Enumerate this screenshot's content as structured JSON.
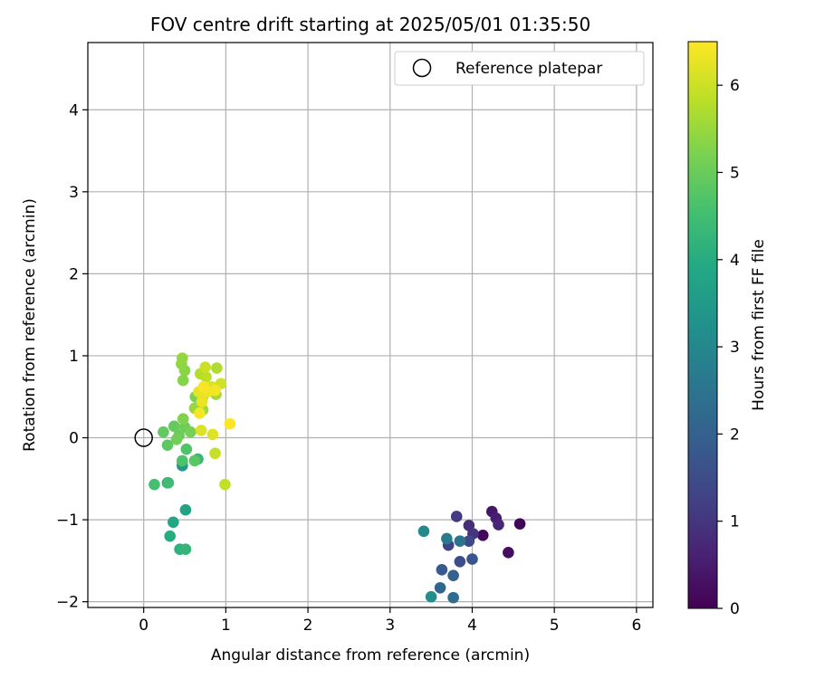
{
  "chart_data": {
    "type": "scatter",
    "title": "FOV centre drift starting at 2025/05/01 01:35:50",
    "xlabel": "Angular distance from reference (arcmin)",
    "ylabel": "Rotation from reference (arcmin)",
    "xlim": [
      -0.68,
      6.2
    ],
    "ylim": [
      -2.07,
      4.82
    ],
    "xticks": [
      0,
      1,
      2,
      3,
      4,
      5,
      6
    ],
    "yticks": [
      -2,
      -1,
      0,
      1,
      2,
      3,
      4
    ],
    "grid": true,
    "legend": {
      "position": "top-right",
      "entries": [
        "Reference platepar"
      ]
    },
    "colorbar": {
      "label": "Hours from first FF file",
      "min": 0,
      "max": 6.5,
      "ticks": [
        0,
        1,
        2,
        3,
        4,
        5,
        6
      ],
      "colormap": "viridis"
    },
    "reference": {
      "label": "Reference platepar",
      "x": 0,
      "y": 0
    },
    "points": [
      {
        "x": 4.58,
        "y": -1.05,
        "c": 0.05
      },
      {
        "x": 4.13,
        "y": -1.19,
        "c": 0.15
      },
      {
        "x": 4.44,
        "y": -1.4,
        "c": 0.25
      },
      {
        "x": 4.24,
        "y": -0.9,
        "c": 0.4
      },
      {
        "x": 4.29,
        "y": -0.98,
        "c": 0.55
      },
      {
        "x": 4.32,
        "y": -1.06,
        "c": 0.7
      },
      {
        "x": 3.96,
        "y": -1.07,
        "c": 0.85
      },
      {
        "x": 4.01,
        "y": -1.17,
        "c": 1.0
      },
      {
        "x": 3.81,
        "y": -0.96,
        "c": 1.1
      },
      {
        "x": 3.71,
        "y": -1.31,
        "c": 1.25
      },
      {
        "x": 3.96,
        "y": -1.26,
        "c": 1.4
      },
      {
        "x": 3.85,
        "y": -1.51,
        "c": 1.55
      },
      {
        "x": 4.0,
        "y": -1.48,
        "c": 1.7
      },
      {
        "x": 3.63,
        "y": -1.61,
        "c": 1.85
      },
      {
        "x": 3.77,
        "y": -1.68,
        "c": 2.0
      },
      {
        "x": 3.61,
        "y": -1.83,
        "c": 2.15
      },
      {
        "x": 3.77,
        "y": -1.95,
        "c": 2.3
      },
      {
        "x": 3.85,
        "y": -1.26,
        "c": 2.5
      },
      {
        "x": 3.69,
        "y": -1.23,
        "c": 2.7
      },
      {
        "x": 3.41,
        "y": -1.14,
        "c": 3.05
      },
      {
        "x": 3.5,
        "y": -1.94,
        "c": 3.2
      },
      {
        "x": 0.29,
        "y": -0.55,
        "c": 3.35
      },
      {
        "x": 0.47,
        "y": -0.34,
        "c": 3.5
      },
      {
        "x": 0.47,
        "y": -0.29,
        "c": 3.6
      },
      {
        "x": 0.51,
        "y": -0.88,
        "c": 3.75
      },
      {
        "x": 0.36,
        "y": -1.03,
        "c": 3.85
      },
      {
        "x": 0.32,
        "y": -1.2,
        "c": 4.0
      },
      {
        "x": 0.44,
        "y": -1.36,
        "c": 4.15
      },
      {
        "x": 0.51,
        "y": -1.36,
        "c": 4.25
      },
      {
        "x": 0.66,
        "y": -0.26,
        "c": 4.35
      },
      {
        "x": 0.3,
        "y": -0.55,
        "c": 4.45
      },
      {
        "x": 0.13,
        "y": -0.57,
        "c": 4.55
      },
      {
        "x": 0.47,
        "y": -0.28,
        "c": 4.65
      },
      {
        "x": 0.52,
        "y": -0.14,
        "c": 4.7
      },
      {
        "x": 0.62,
        "y": -0.28,
        "c": 4.8
      },
      {
        "x": 0.29,
        "y": -0.09,
        "c": 4.85
      },
      {
        "x": 0.24,
        "y": 0.07,
        "c": 4.9
      },
      {
        "x": 0.37,
        "y": 0.14,
        "c": 4.95
      },
      {
        "x": 0.43,
        "y": 0.03,
        "c": 5.0
      },
      {
        "x": 0.5,
        "y": 0.13,
        "c": 5.05
      },
      {
        "x": 0.4,
        "y": -0.02,
        "c": 5.1
      },
      {
        "x": 0.57,
        "y": 0.07,
        "c": 5.15
      },
      {
        "x": 0.63,
        "y": 0.5,
        "c": 5.2
      },
      {
        "x": 0.48,
        "y": 0.23,
        "c": 5.25
      },
      {
        "x": 0.48,
        "y": 0.7,
        "c": 5.3
      },
      {
        "x": 0.5,
        "y": 0.82,
        "c": 5.35
      },
      {
        "x": 0.46,
        "y": 0.9,
        "c": 5.4
      },
      {
        "x": 0.47,
        "y": 0.97,
        "c": 5.45
      },
      {
        "x": 0.62,
        "y": 0.36,
        "c": 5.5
      },
      {
        "x": 0.72,
        "y": 0.34,
        "c": 5.55
      },
      {
        "x": 0.88,
        "y": 0.53,
        "c": 5.6
      },
      {
        "x": 0.89,
        "y": 0.85,
        "c": 5.7
      },
      {
        "x": 0.69,
        "y": 0.78,
        "c": 5.75
      },
      {
        "x": 0.72,
        "y": 0.5,
        "c": 5.8
      },
      {
        "x": 0.76,
        "y": 0.74,
        "c": 5.85
      },
      {
        "x": 0.99,
        "y": -0.57,
        "c": 5.9
      },
      {
        "x": 0.87,
        "y": -0.19,
        "c": 5.95
      },
      {
        "x": 0.75,
        "y": 0.86,
        "c": 6.0
      },
      {
        "x": 0.94,
        "y": 0.66,
        "c": 6.05
      },
      {
        "x": 0.83,
        "y": 0.62,
        "c": 6.1
      },
      {
        "x": 0.7,
        "y": 0.09,
        "c": 6.15
      },
      {
        "x": 0.84,
        "y": 0.04,
        "c": 6.2
      },
      {
        "x": 0.67,
        "y": 0.56,
        "c": 6.25
      },
      {
        "x": 0.71,
        "y": 0.44,
        "c": 6.3
      },
      {
        "x": 0.78,
        "y": 0.56,
        "c": 6.35
      },
      {
        "x": 0.68,
        "y": 0.3,
        "c": 6.4
      },
      {
        "x": 0.87,
        "y": 0.58,
        "c": 6.42
      },
      {
        "x": 0.73,
        "y": 0.62,
        "c": 6.45
      },
      {
        "x": 1.05,
        "y": 0.17,
        "c": 6.5
      }
    ]
  }
}
